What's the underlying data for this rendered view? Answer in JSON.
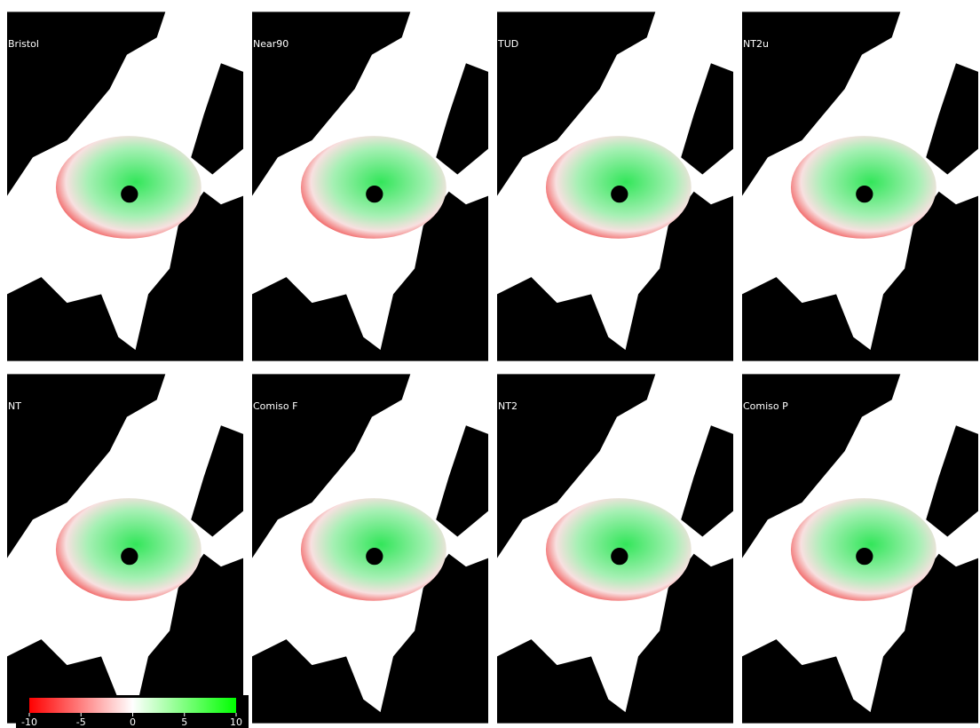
{
  "panels": [
    {
      "label": "Bristol"
    },
    {
      "label": "Near90"
    },
    {
      "label": "TUD"
    },
    {
      "label": "NT2u"
    },
    {
      "label": "NT"
    },
    {
      "label": "Comiso F"
    },
    {
      "label": "NT2"
    },
    {
      "label": "Comiso P"
    }
  ],
  "colorbar": {
    "range": [
      -10,
      10
    ],
    "ticks": [
      -10,
      -5,
      0,
      5,
      10
    ],
    "colors": [
      "#ff0000",
      "#ffffff",
      "#00ff00"
    ]
  }
}
